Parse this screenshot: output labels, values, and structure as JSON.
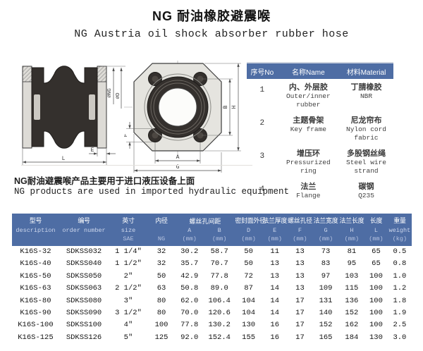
{
  "title": "NG 耐油橡胶避震喉",
  "subtitle": "NG Austria oil shock absorber rubber hose",
  "note_cn": "NG耐油避震喉产品主要用于进口液压设备上面",
  "note_en": "NG products are used in imported hydraulic equipment",
  "colors": {
    "table_header_bg": "#4e6da4",
    "table_header_text": "#ffffff",
    "table_header_subtext": "#b6c3e0",
    "rubber_dark": "#34302d",
    "flange_gray": "#dddbd6"
  },
  "diagram": {
    "side_view": {
      "label_ng": "∅NG",
      "label_d": "∅D",
      "label_e": "E",
      "label_l": "L"
    },
    "front_view": {
      "label_f": "F",
      "label_b": "B",
      "label_h": "H",
      "label_a": "A",
      "label_g": "G"
    }
  },
  "materials_table": {
    "headers": [
      "序号No",
      "名称Name",
      "材料Material"
    ],
    "rows": [
      {
        "no": "1",
        "name_cn": "内、外层胶",
        "name_en": "Outer/inner rubber",
        "material_cn": "丁腈橡胶",
        "material_en": "NBR"
      },
      {
        "no": "2",
        "name_cn": "主题骨架",
        "name_en": "Key frame",
        "material_cn": "尼龙帘布",
        "material_en": "Nylon cord fabric"
      },
      {
        "no": "3",
        "name_cn": "增压环",
        "name_en": "Pressurized ring",
        "material_cn": "多股钢丝绳",
        "material_en": "Steel wire strand"
      },
      {
        "no": "4",
        "name_cn": "法兰",
        "name_en": "Flange",
        "material_cn": "碳钢",
        "material_en": "Q235"
      }
    ]
  },
  "spec_table": {
    "group_label": "螺丝孔间距",
    "columns": [
      {
        "cn": "型号",
        "l2": "description",
        "l3": ""
      },
      {
        "cn": "编号",
        "l2": "order number",
        "l3": ""
      },
      {
        "cn": "英寸",
        "l2": "size",
        "l3": "SAE"
      },
      {
        "cn": "内径",
        "l2": "",
        "l3": "NG"
      },
      {
        "cn": "",
        "l2": "A",
        "l3": "(mm)"
      },
      {
        "cn": "",
        "l2": "B",
        "l3": "(mm)"
      },
      {
        "cn": "密封面外径",
        "l2": "D",
        "l3": "(mm)"
      },
      {
        "cn": "法兰厚度",
        "l2": "E",
        "l3": "(mm)"
      },
      {
        "cn": "螺丝孔径",
        "l2": "F",
        "l3": "(mm)"
      },
      {
        "cn": "法兰宽度",
        "l2": "G",
        "l3": "(mm)"
      },
      {
        "cn": "法兰长度",
        "l2": "H",
        "l3": "(mm)"
      },
      {
        "cn": "长度",
        "l2": "L",
        "l3": "(mm)"
      },
      {
        "cn": "重量",
        "l2": "weight",
        "l3": "(kg)"
      }
    ],
    "rows": [
      [
        "K16S-32",
        "SDKSS032",
        "1 1/4\"",
        "32",
        "30.2",
        "58.7",
        "50",
        "11",
        "13",
        "73",
        "81",
        "65",
        "0.5"
      ],
      [
        "K16S-40",
        "SDKSS040",
        "1 1/2\"",
        "32",
        "35.7",
        "70.7",
        "50",
        "13",
        "13",
        "83",
        "95",
        "65",
        "0.8"
      ],
      [
        "K16S-50",
        "SDKSS050",
        "2\"",
        "50",
        "42.9",
        "77.8",
        "72",
        "13",
        "13",
        "97",
        "103",
        "100",
        "1.0"
      ],
      [
        "K16S-63",
        "SDKSS063",
        "2 1/2\"",
        "63",
        "50.8",
        "89.0",
        "87",
        "14",
        "13",
        "109",
        "115",
        "100",
        "1.2"
      ],
      [
        "K16S-80",
        "SDKSS080",
        "3\"",
        "80",
        "62.0",
        "106.4",
        "104",
        "14",
        "17",
        "131",
        "136",
        "100",
        "1.8"
      ],
      [
        "K16S-90",
        "SDKSS090",
        "3 1/2\"",
        "80",
        "70.0",
        "120.6",
        "104",
        "14",
        "17",
        "140",
        "152",
        "100",
        "1.9"
      ],
      [
        "K16S-100",
        "SDKSS100",
        "4\"",
        "100",
        "77.8",
        "130.2",
        "130",
        "16",
        "17",
        "152",
        "162",
        "100",
        "2.5"
      ],
      [
        "K16S-125",
        "SDKSS126",
        "5\"",
        "125",
        "92.0",
        "152.4",
        "155",
        "16",
        "17",
        "165",
        "184",
        "130",
        "3.0"
      ]
    ]
  }
}
